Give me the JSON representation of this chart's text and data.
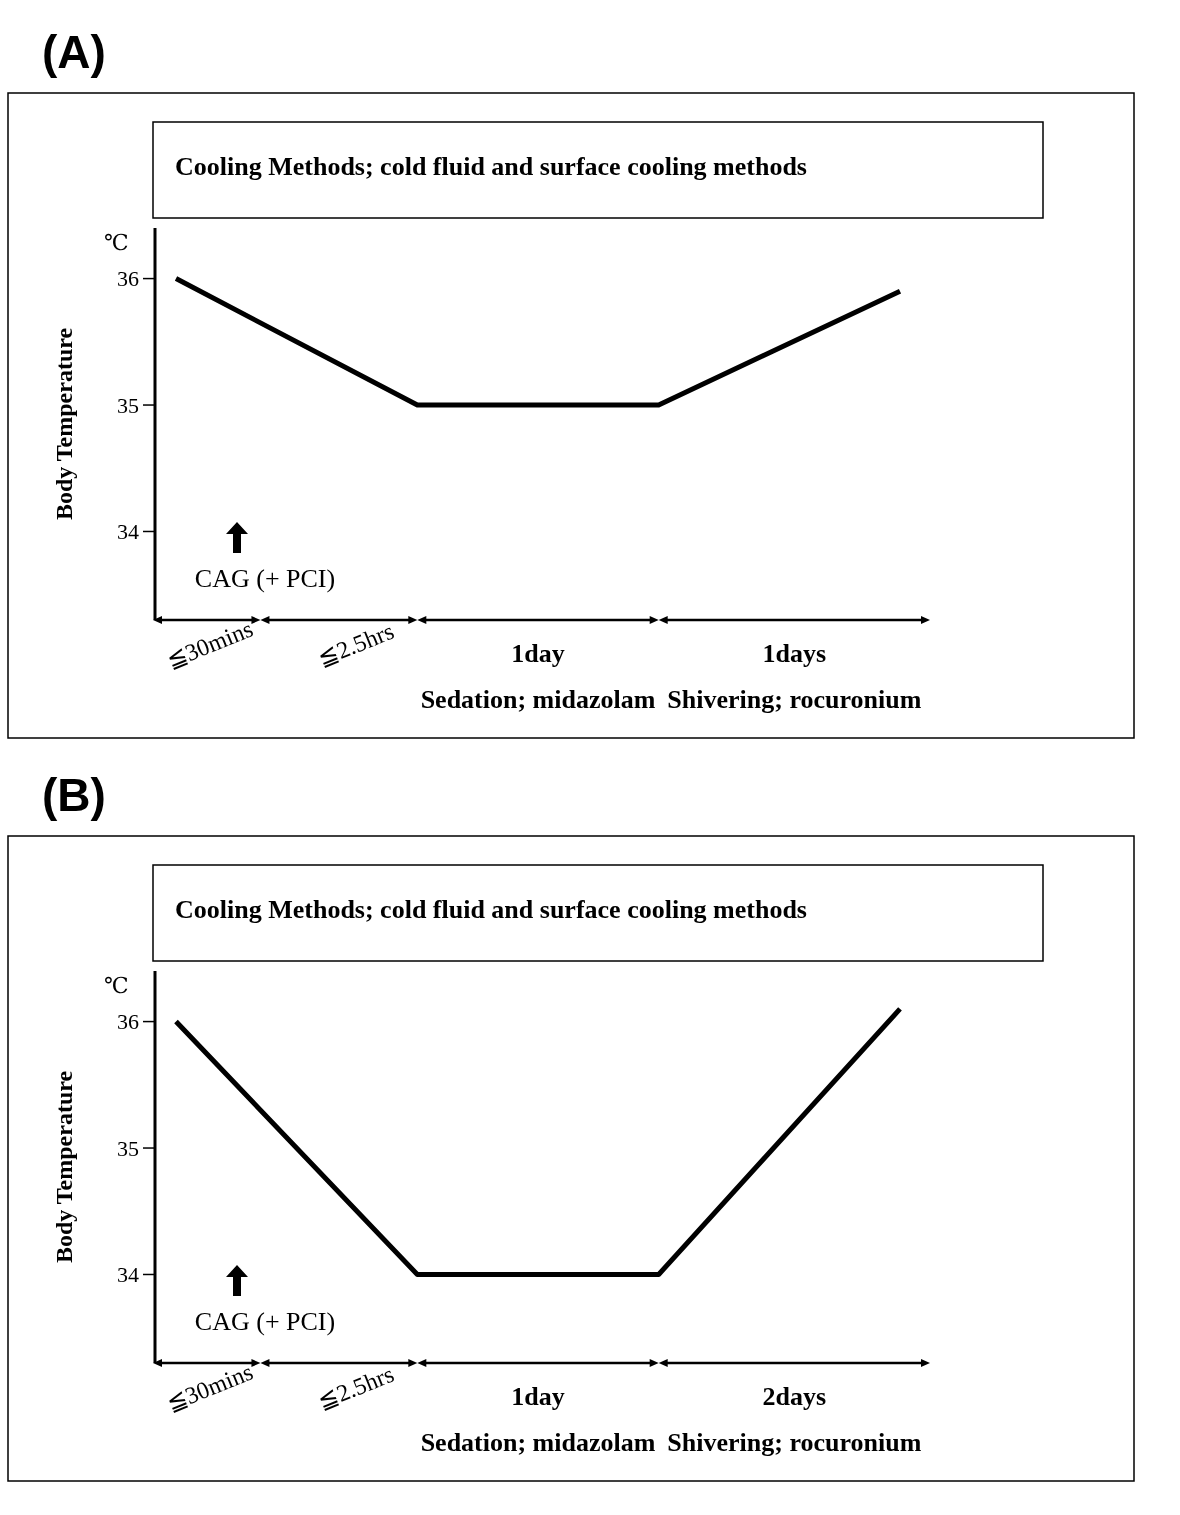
{
  "chart_data": [
    {
      "type": "line",
      "title": "(A)",
      "ylabel": "Body Temperature",
      "categories": [
        null,
        null,
        null,
        null
      ],
      "series": [
        {
          "color": "#000000",
          "values": [
            36,
            35,
            35,
            35.9
          ]
        }
      ],
      "ylim": [
        33.3,
        36.4
      ],
      "yticks": [
        34,
        35,
        36
      ],
      "tick_labels": "y",
      "annotations": [
        "Cooling Methods; cold fluid and surface cooling methods",
        "℃",
        "CAG (+ PCI)",
        "≦30mins",
        "≦2.5hrs",
        "1day",
        "1days",
        "Sedation; midazolam",
        "Shivering; rocuronium"
      ]
    },
    {
      "type": "line",
      "title": "(B)",
      "ylabel": "Body Temperature",
      "categories": [
        null,
        null,
        null,
        null
      ],
      "series": [
        {
          "color": "#000000",
          "values": [
            36,
            34,
            34,
            36.1
          ]
        }
      ],
      "ylim": [
        33.3,
        36.4
      ],
      "yticks": [
        34,
        35,
        36
      ],
      "tick_labels": "y",
      "annotations": [
        "Cooling Methods; cold fluid and surface cooling methods",
        "℃",
        "CAG (+ PCI)",
        "≦30mins",
        "≦2.5hrs",
        "1day",
        "2days",
        "Sedation; midazolam",
        "Shivering; rocuronium"
      ]
    }
  ]
}
